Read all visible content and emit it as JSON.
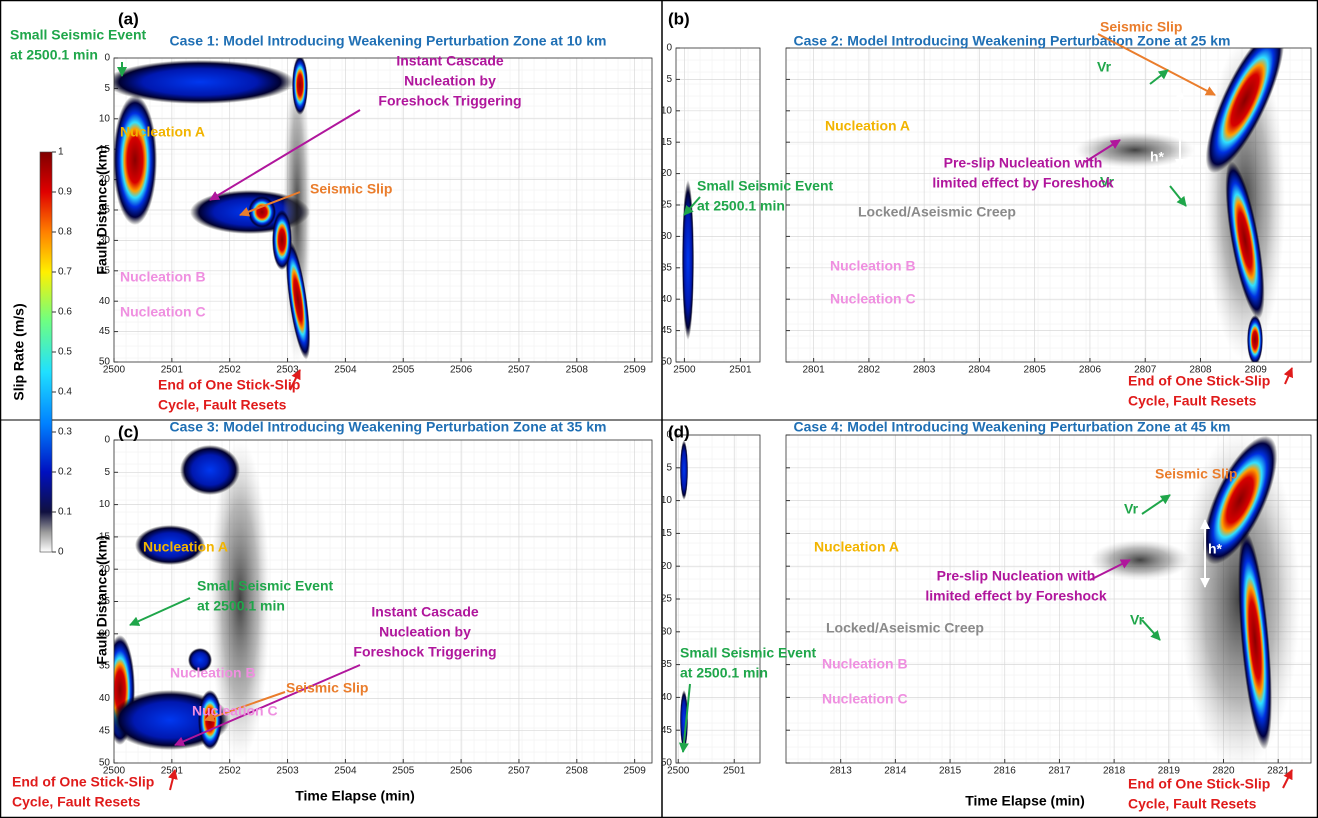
{
  "colorbar": {
    "label": "Slip Rate (m/s)",
    "lim": [
      0,
      1
    ],
    "ticks": [
      0,
      0.1,
      0.2,
      0.3,
      0.4,
      0.5,
      0.6,
      0.7,
      0.8,
      0.9,
      1
    ]
  },
  "chart_data": [
    {
      "type": "heatmap",
      "panel_label": "(a)",
      "title": "Case 1: Model Introducing Weakening Perturbation Zone at 10 km",
      "ylabel": "Fault Distance (km)",
      "y_inverted": true,
      "xlim": [
        2500,
        2509.3
      ],
      "xticks": [
        2500,
        2501,
        2502,
        2503,
        2504,
        2505,
        2506,
        2507,
        2508,
        2509
      ],
      "ylim": [
        0,
        50
      ],
      "yticks": [
        0,
        5,
        10,
        15,
        20,
        25,
        30,
        35,
        40,
        45,
        50
      ],
      "annotations": [
        {
          "lines": [
            "Small Seismic Event",
            "at 2500.1 min"
          ],
          "color": "#1fa64a"
        },
        {
          "lines": [
            "Nucleation A"
          ],
          "color": "#f2b400"
        },
        {
          "lines": [
            "Instant Cascade",
            "Nucleation by",
            "Foreshock Triggering"
          ],
          "color": "#b0169c"
        },
        {
          "lines": [
            "Seismic Slip"
          ],
          "color": "#ea7d2c"
        },
        {
          "lines": [
            "Nucleation B"
          ],
          "color": "#ef8fe0"
        },
        {
          "lines": [
            "Nucleation C"
          ],
          "color": "#ef8fe0"
        },
        {
          "lines": [
            "End of One Stick-Slip",
            "Cycle, Fault Resets"
          ],
          "color": "#e01b1b"
        }
      ]
    },
    {
      "type": "heatmap",
      "panel_label": "(b)",
      "title": "Case 2: Model Introducing Weakening Perturbation Zone at 25 km",
      "y_inverted": true,
      "xlim": [
        2800.5,
        2810
      ],
      "xticks": [
        2801,
        2802,
        2803,
        2804,
        2805,
        2806,
        2807,
        2808,
        2809
      ],
      "inset_xlim": [
        2499.85,
        2501.35
      ],
      "inset_xticks": [
        2500,
        2501
      ],
      "ylim": [
        0,
        50
      ],
      "yticks": [
        0,
        5,
        10,
        15,
        20,
        25,
        30,
        35,
        40,
        45,
        50
      ],
      "annotations": [
        {
          "lines": [
            "Seismic Slip"
          ],
          "color": "#ea7d2c"
        },
        {
          "lines": [
            "Vr"
          ],
          "color": "#1fa64a"
        },
        {
          "lines": [
            "Vr"
          ],
          "color": "#1fa64a"
        },
        {
          "lines": [
            "h*"
          ],
          "color": "#ffffff"
        },
        {
          "lines": [
            "Nucleation A"
          ],
          "color": "#f2b400"
        },
        {
          "lines": [
            "Pre-slip Nucleation with",
            "limited effect by Foreshock"
          ],
          "color": "#b0169c"
        },
        {
          "lines": [
            "Small Seismic Event",
            "at 2500.1 min"
          ],
          "color": "#1fa64a"
        },
        {
          "lines": [
            "Locked/Aseismic Creep"
          ],
          "color": "#8a8a8a"
        },
        {
          "lines": [
            "Nucleation B"
          ],
          "color": "#ef8fe0"
        },
        {
          "lines": [
            "Nucleation C"
          ],
          "color": "#ef8fe0"
        },
        {
          "lines": [
            "End of One Stick-Slip",
            "Cycle, Fault Resets"
          ],
          "color": "#e01b1b"
        }
      ]
    },
    {
      "type": "heatmap",
      "panel_label": "(c)",
      "title": "Case 3: Model Introducing Weakening Perturbation Zone at 35 km",
      "ylabel": "Fault Distance (km)",
      "xlabel": "Time Elapse (min)",
      "y_inverted": true,
      "xlim": [
        2500,
        2509.3
      ],
      "xticks": [
        2500,
        2501,
        2502,
        2503,
        2504,
        2505,
        2506,
        2507,
        2508,
        2509
      ],
      "ylim": [
        0,
        50
      ],
      "yticks": [
        0,
        5,
        10,
        15,
        20,
        25,
        30,
        35,
        40,
        45,
        50
      ],
      "annotations": [
        {
          "lines": [
            "Nucleation A"
          ],
          "color": "#f2b400"
        },
        {
          "lines": [
            "Small Seismic Event",
            "at 2500.1 min"
          ],
          "color": "#1fa64a"
        },
        {
          "lines": [
            "Instant Cascade",
            "Nucleation by",
            "Foreshock Triggering"
          ],
          "color": "#b0169c"
        },
        {
          "lines": [
            "Nucleation B"
          ],
          "color": "#ef8fe0"
        },
        {
          "lines": [
            "Seismic Slip"
          ],
          "color": "#ea7d2c"
        },
        {
          "lines": [
            "Nucleation C"
          ],
          "color": "#ef8fe0"
        },
        {
          "lines": [
            "End of One Stick-Slip",
            "Cycle, Fault Resets"
          ],
          "color": "#e01b1b"
        }
      ]
    },
    {
      "type": "heatmap",
      "panel_label": "(d)",
      "title": "Case 4: Model Introducing Weakening Perturbation Zone at 45 km",
      "xlabel": "Time Elapse (min)",
      "y_inverted": true,
      "xlim": [
        2812,
        2821.6
      ],
      "xticks": [
        2813,
        2814,
        2815,
        2816,
        2817,
        2818,
        2819,
        2820,
        2821
      ],
      "inset_xlim": [
        2499.96,
        2501.46
      ],
      "inset_xticks": [
        2500,
        2501
      ],
      "ylim": [
        0,
        50
      ],
      "yticks": [
        0,
        5,
        10,
        15,
        20,
        25,
        30,
        35,
        40,
        45,
        50
      ],
      "annotations": [
        {
          "lines": [
            "Seismic Slip"
          ],
          "color": "#ea7d2c"
        },
        {
          "lines": [
            "Vr"
          ],
          "color": "#1fa64a"
        },
        {
          "lines": [
            "Vr"
          ],
          "color": "#1fa64a"
        },
        {
          "lines": [
            "h*"
          ],
          "color": "#ffffff"
        },
        {
          "lines": [
            "Nucleation A"
          ],
          "color": "#f2b400"
        },
        {
          "lines": [
            "Pre-slip Nucleation with",
            "limited effect by Foreshock"
          ],
          "color": "#b0169c"
        },
        {
          "lines": [
            "Small Seismic Event",
            "at 2500.1 min"
          ],
          "color": "#1fa64a"
        },
        {
          "lines": [
            "Locked/Aseismic Creep"
          ],
          "color": "#8a8a8a"
        },
        {
          "lines": [
            "Nucleation B"
          ],
          "color": "#ef8fe0"
        },
        {
          "lines": [
            "Nucleation C"
          ],
          "color": "#ef8fe0"
        },
        {
          "lines": [
            "End of One Stick-Slip",
            "Cycle, Fault Resets"
          ],
          "color": "#e01b1b"
        }
      ]
    }
  ]
}
